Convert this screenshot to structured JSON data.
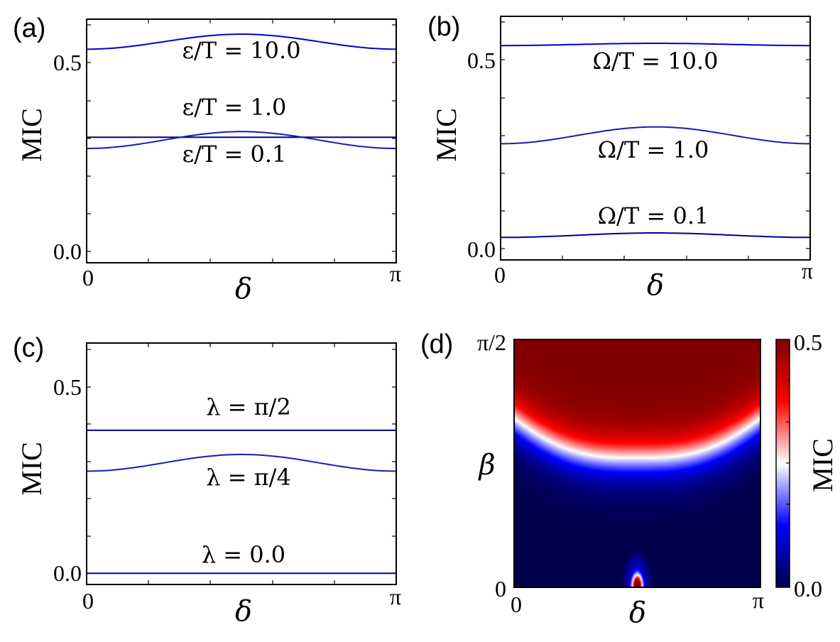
{
  "colors": {
    "curve_dark": "#00008b",
    "curve_mid": "#1a1ab8",
    "curve_bright": "#0000cc",
    "axis": "#000000"
  },
  "chart_data": [
    {
      "panel": "(a)",
      "type": "line",
      "xlabel": "δ",
      "ylabel": "MIC",
      "xlim": [
        0,
        3.14159
      ],
      "ylim": [
        -0.03,
        0.62
      ],
      "xtick_labels": [
        "0",
        "π"
      ],
      "ytick_values": [
        0.0,
        0.5
      ],
      "ytick_labels": [
        "0.0",
        "0.5"
      ],
      "series": [
        {
          "name": "ε/T = 10.0",
          "min": 0.54,
          "max": 0.58,
          "shape": "bump",
          "color": "curve_bright"
        },
        {
          "name": "ε/T = 1.0",
          "min": 0.305,
          "max": 0.305,
          "shape": "flat",
          "color": "curve_dark"
        },
        {
          "name": "ε/T = 0.1",
          "min": 0.275,
          "max": 0.32,
          "shape": "bump",
          "color": "curve_mid"
        }
      ],
      "labels": [
        "ε/T = 10.0",
        "ε/T = 1.0",
        "ε/T = 0.1"
      ]
    },
    {
      "panel": "(b)",
      "type": "line",
      "xlabel": "δ",
      "ylabel": "MIC",
      "xlim": [
        0,
        3.14159
      ],
      "ylim": [
        -0.03,
        0.62
      ],
      "xtick_labels": [
        "0",
        "π"
      ],
      "ytick_values": [
        0.0,
        0.5
      ],
      "ytick_labels": [
        "0.0",
        "0.5"
      ],
      "series": [
        {
          "name": "Ω/T = 10.0",
          "min": 0.542,
          "max": 0.548,
          "shape": "bump",
          "color": "curve_bright"
        },
        {
          "name": "Ω/T = 1.0",
          "min": 0.28,
          "max": 0.325,
          "shape": "bump",
          "color": "curve_mid"
        },
        {
          "name": "Ω/T = 0.1",
          "min": 0.03,
          "max": 0.042,
          "shape": "bump",
          "color": "curve_dark"
        }
      ],
      "labels": [
        "Ω/T = 10.0",
        "Ω/T = 1.0",
        "Ω/T = 0.1"
      ]
    },
    {
      "panel": "(c)",
      "type": "line",
      "xlabel": "δ",
      "ylabel": "MIC",
      "xlim": [
        0,
        3.14159
      ],
      "ylim": [
        -0.03,
        0.62
      ],
      "xtick_labels": [
        "0",
        "π"
      ],
      "ytick_values": [
        0.0,
        0.5
      ],
      "ytick_labels": [
        "0.0",
        "0.5"
      ],
      "series": [
        {
          "name": "λ = π/2",
          "min": 0.385,
          "max": 0.385,
          "shape": "flat",
          "color": "curve_dark"
        },
        {
          "name": "λ = π/4",
          "min": 0.275,
          "max": 0.32,
          "shape": "bump",
          "color": "curve_mid"
        },
        {
          "name": "λ = 0.0",
          "min": 0.0,
          "max": 0.0,
          "shape": "flat",
          "color": "curve_bright"
        }
      ],
      "labels": [
        "λ = π/2",
        "λ = π/4",
        "λ = 0.0"
      ]
    },
    {
      "panel": "(d)",
      "type": "heatmap",
      "xlabel": "δ",
      "ylabel": "β",
      "xlim": [
        0,
        3.14159
      ],
      "ylim": [
        0,
        1.5708
      ],
      "xtick_labels": [
        "0",
        "π"
      ],
      "ytick_labels": [
        "0",
        "π/2"
      ],
      "colorbar": {
        "label": "MIC",
        "min": 0.0,
        "max": 0.5,
        "tick_labels": [
          "0.0",
          "0.5"
        ],
        "colormap": "seismic"
      }
    }
  ]
}
